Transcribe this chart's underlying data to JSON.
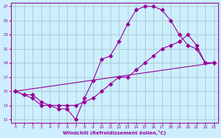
{
  "xlabel": "Windchill (Refroidissement éolien,°C)",
  "bg_color": "#cceeff",
  "line_color": "#990099",
  "grid_color": "#aacccc",
  "xlim": [
    0,
    23
  ],
  "ylim": [
    11,
    27
  ],
  "yticks": [
    11,
    13,
    15,
    17,
    19,
    21,
    23,
    25,
    27
  ],
  "xticks": [
    0,
    1,
    2,
    3,
    4,
    5,
    6,
    7,
    8,
    9,
    10,
    11,
    12,
    13,
    14,
    15,
    16,
    17,
    18,
    19,
    20,
    21,
    22,
    23
  ],
  "line1_x": [
    0,
    1,
    2,
    3,
    4,
    5,
    6,
    7,
    8,
    9,
    10,
    11,
    12,
    13,
    14,
    15,
    16,
    17,
    18,
    19,
    20,
    21,
    22,
    23
  ],
  "line1_y": [
    15.0,
    14.5,
    14.0,
    13.0,
    13.0,
    12.5,
    12.5,
    11.0,
    14.0,
    16.5,
    19.5,
    20.0,
    22.0,
    24.5,
    26.5,
    27.0,
    27.0,
    26.5,
    25.0,
    23.0,
    21.5,
    21.0,
    19.0,
    19.0
  ],
  "line2_x": [
    0,
    1,
    2,
    3,
    4,
    5,
    6,
    7,
    8,
    9,
    10,
    11,
    12,
    13,
    14,
    15,
    16,
    17,
    18,
    19,
    20,
    21,
    22,
    23
  ],
  "line2_y": [
    15.0,
    14.5,
    14.5,
    13.5,
    13.0,
    13.0,
    13.0,
    13.0,
    13.5,
    14.0,
    15.0,
    16.0,
    17.0,
    17.0,
    18.0,
    19.0,
    20.0,
    21.0,
    21.5,
    22.0,
    23.0,
    21.5,
    19.0,
    19.0
  ],
  "line3_x": [
    0,
    23
  ],
  "line3_y": [
    15.0,
    19.0
  ]
}
